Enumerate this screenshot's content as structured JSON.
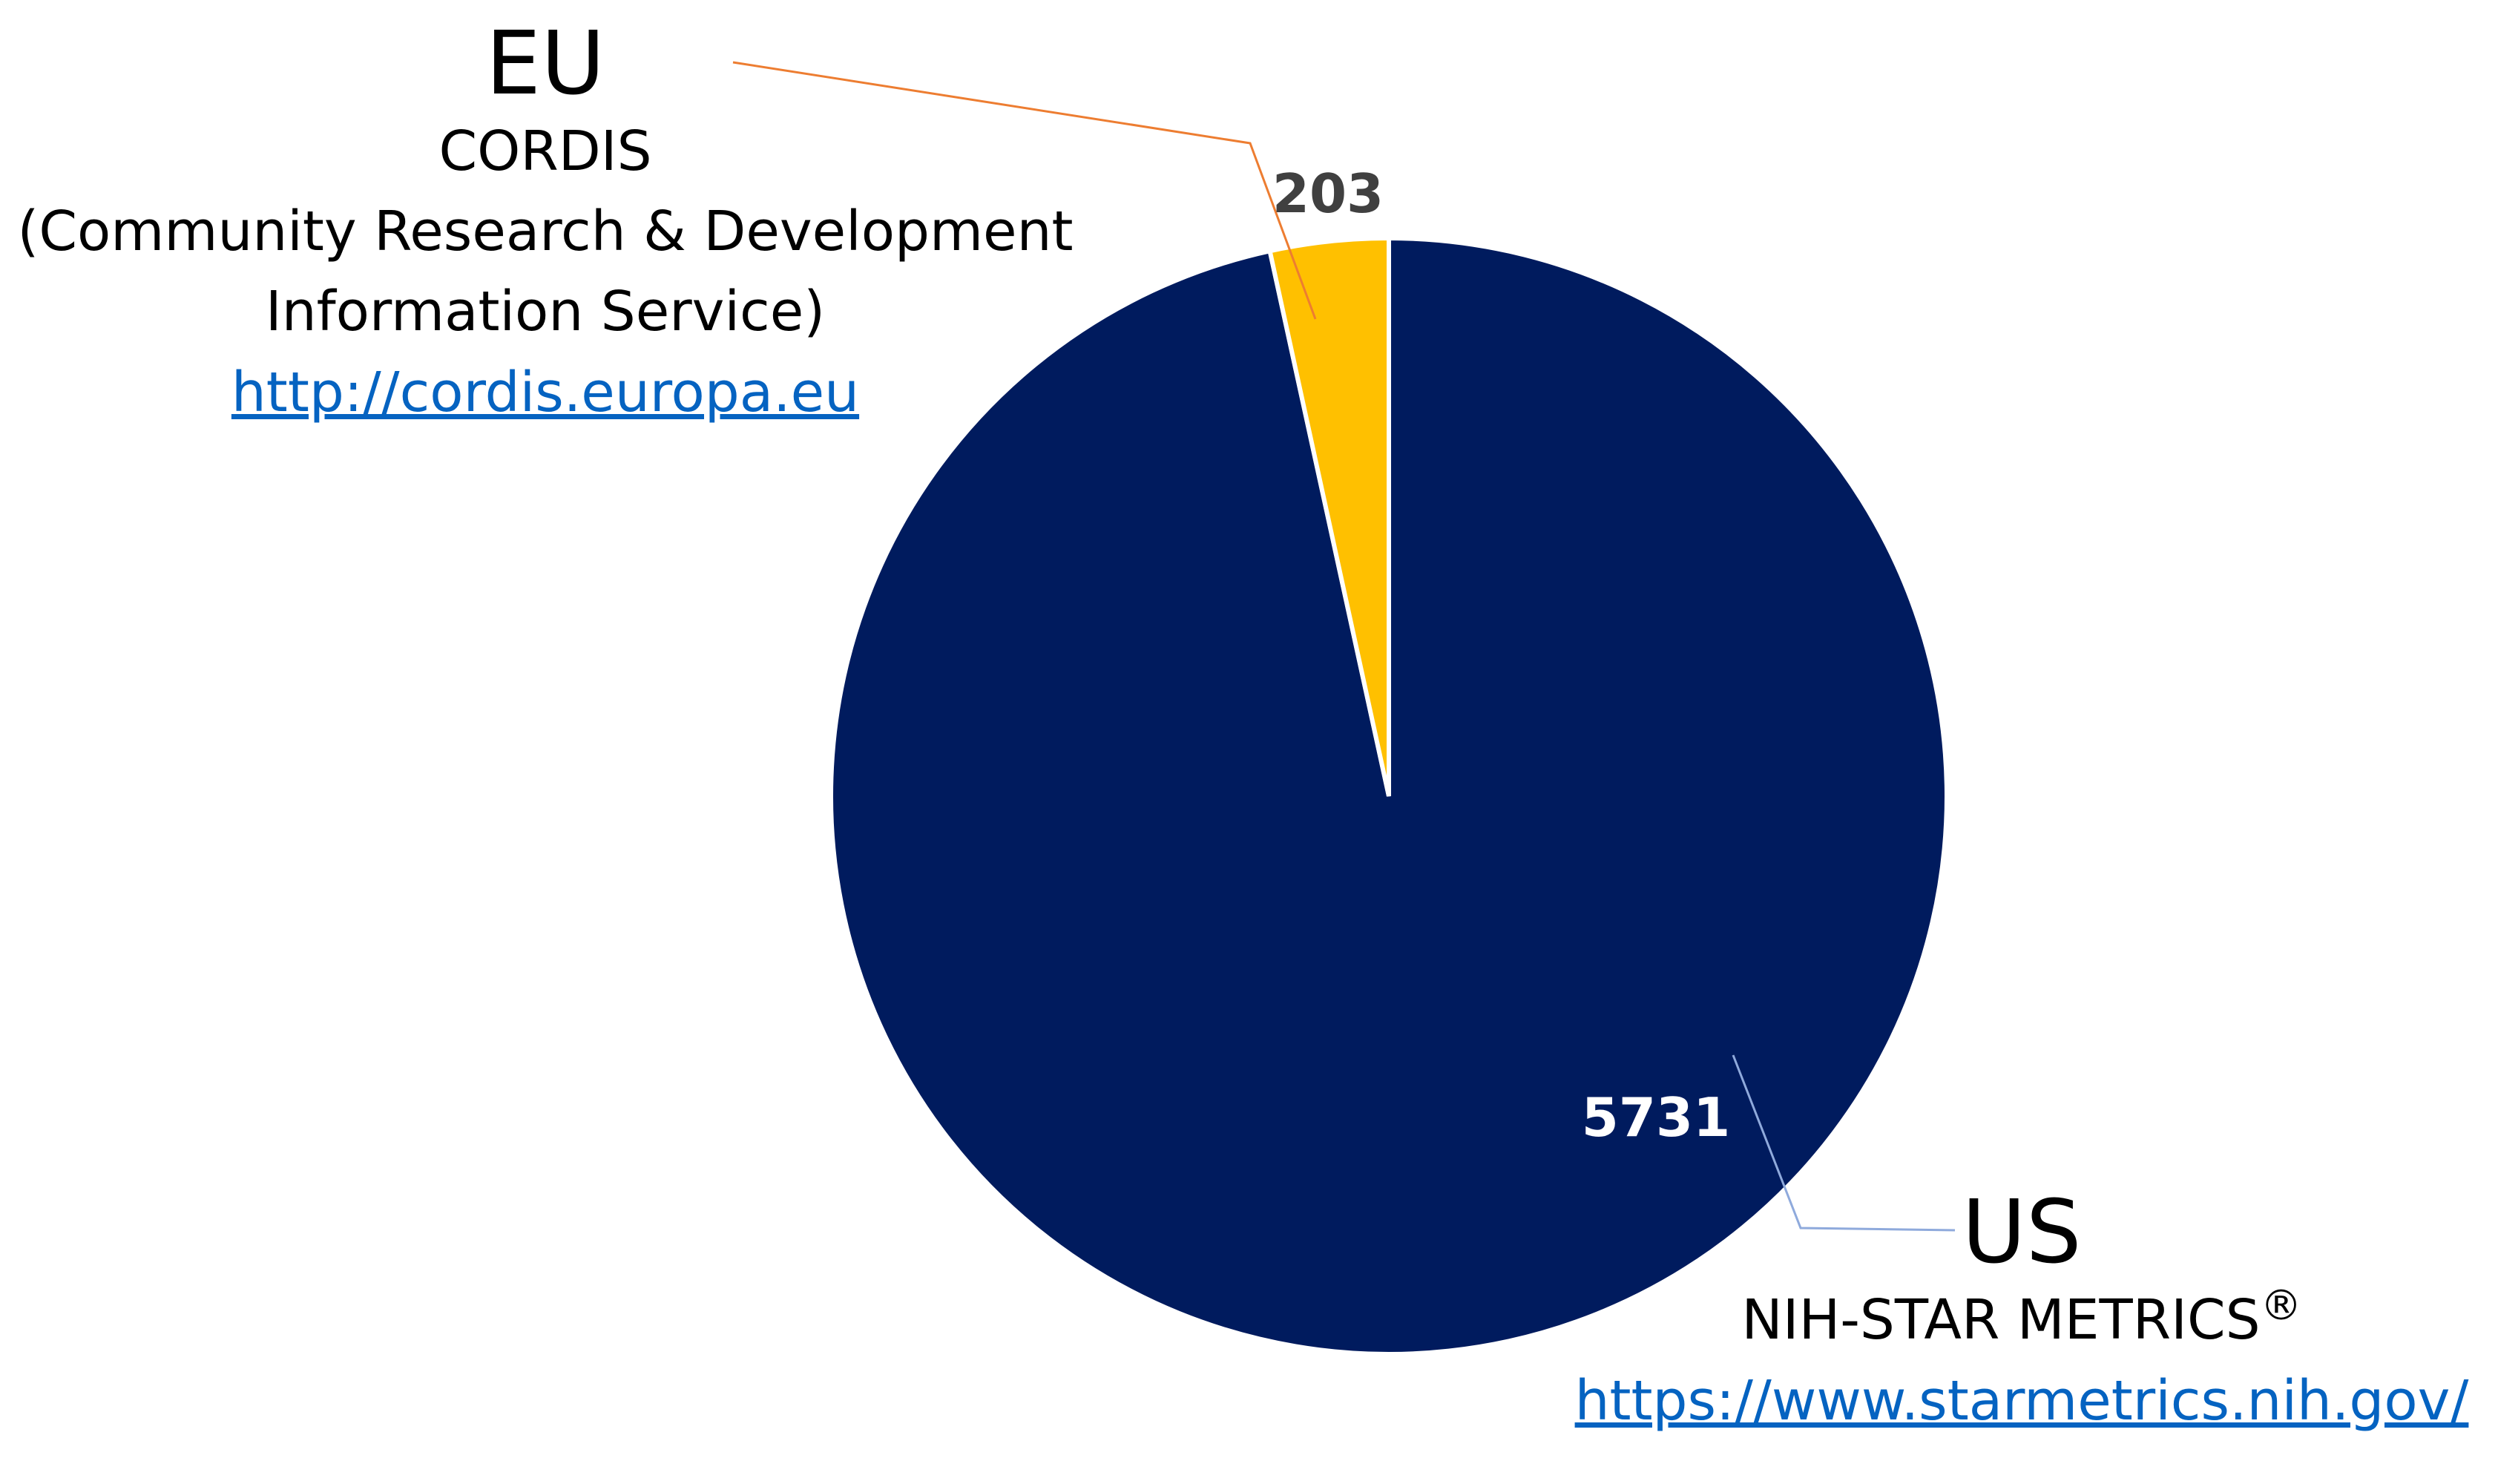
{
  "chart_data": {
    "type": "pie",
    "slices": [
      {
        "name": "EU",
        "value": 203,
        "color": "#ffc000"
      },
      {
        "name": "US",
        "value": 5731,
        "color": "#001b5e"
      }
    ],
    "data_labels": [
      "203",
      "5731"
    ],
    "legend": "none"
  },
  "eu": {
    "region": "EU",
    "source": "CORDIS",
    "source_full_line1": "(Community Research & Development",
    "source_full_line2": "Information Service)",
    "url": "http://cordis.europa.eu"
  },
  "us": {
    "region": "US",
    "source": "NIH-STAR METRICS",
    "registered_mark": "®",
    "url": "https://www.starmetrics.nih.gov/"
  },
  "colors": {
    "eu_leader": "#ed7d31",
    "us_leader": "#8faadc",
    "link": "#0563c1"
  }
}
